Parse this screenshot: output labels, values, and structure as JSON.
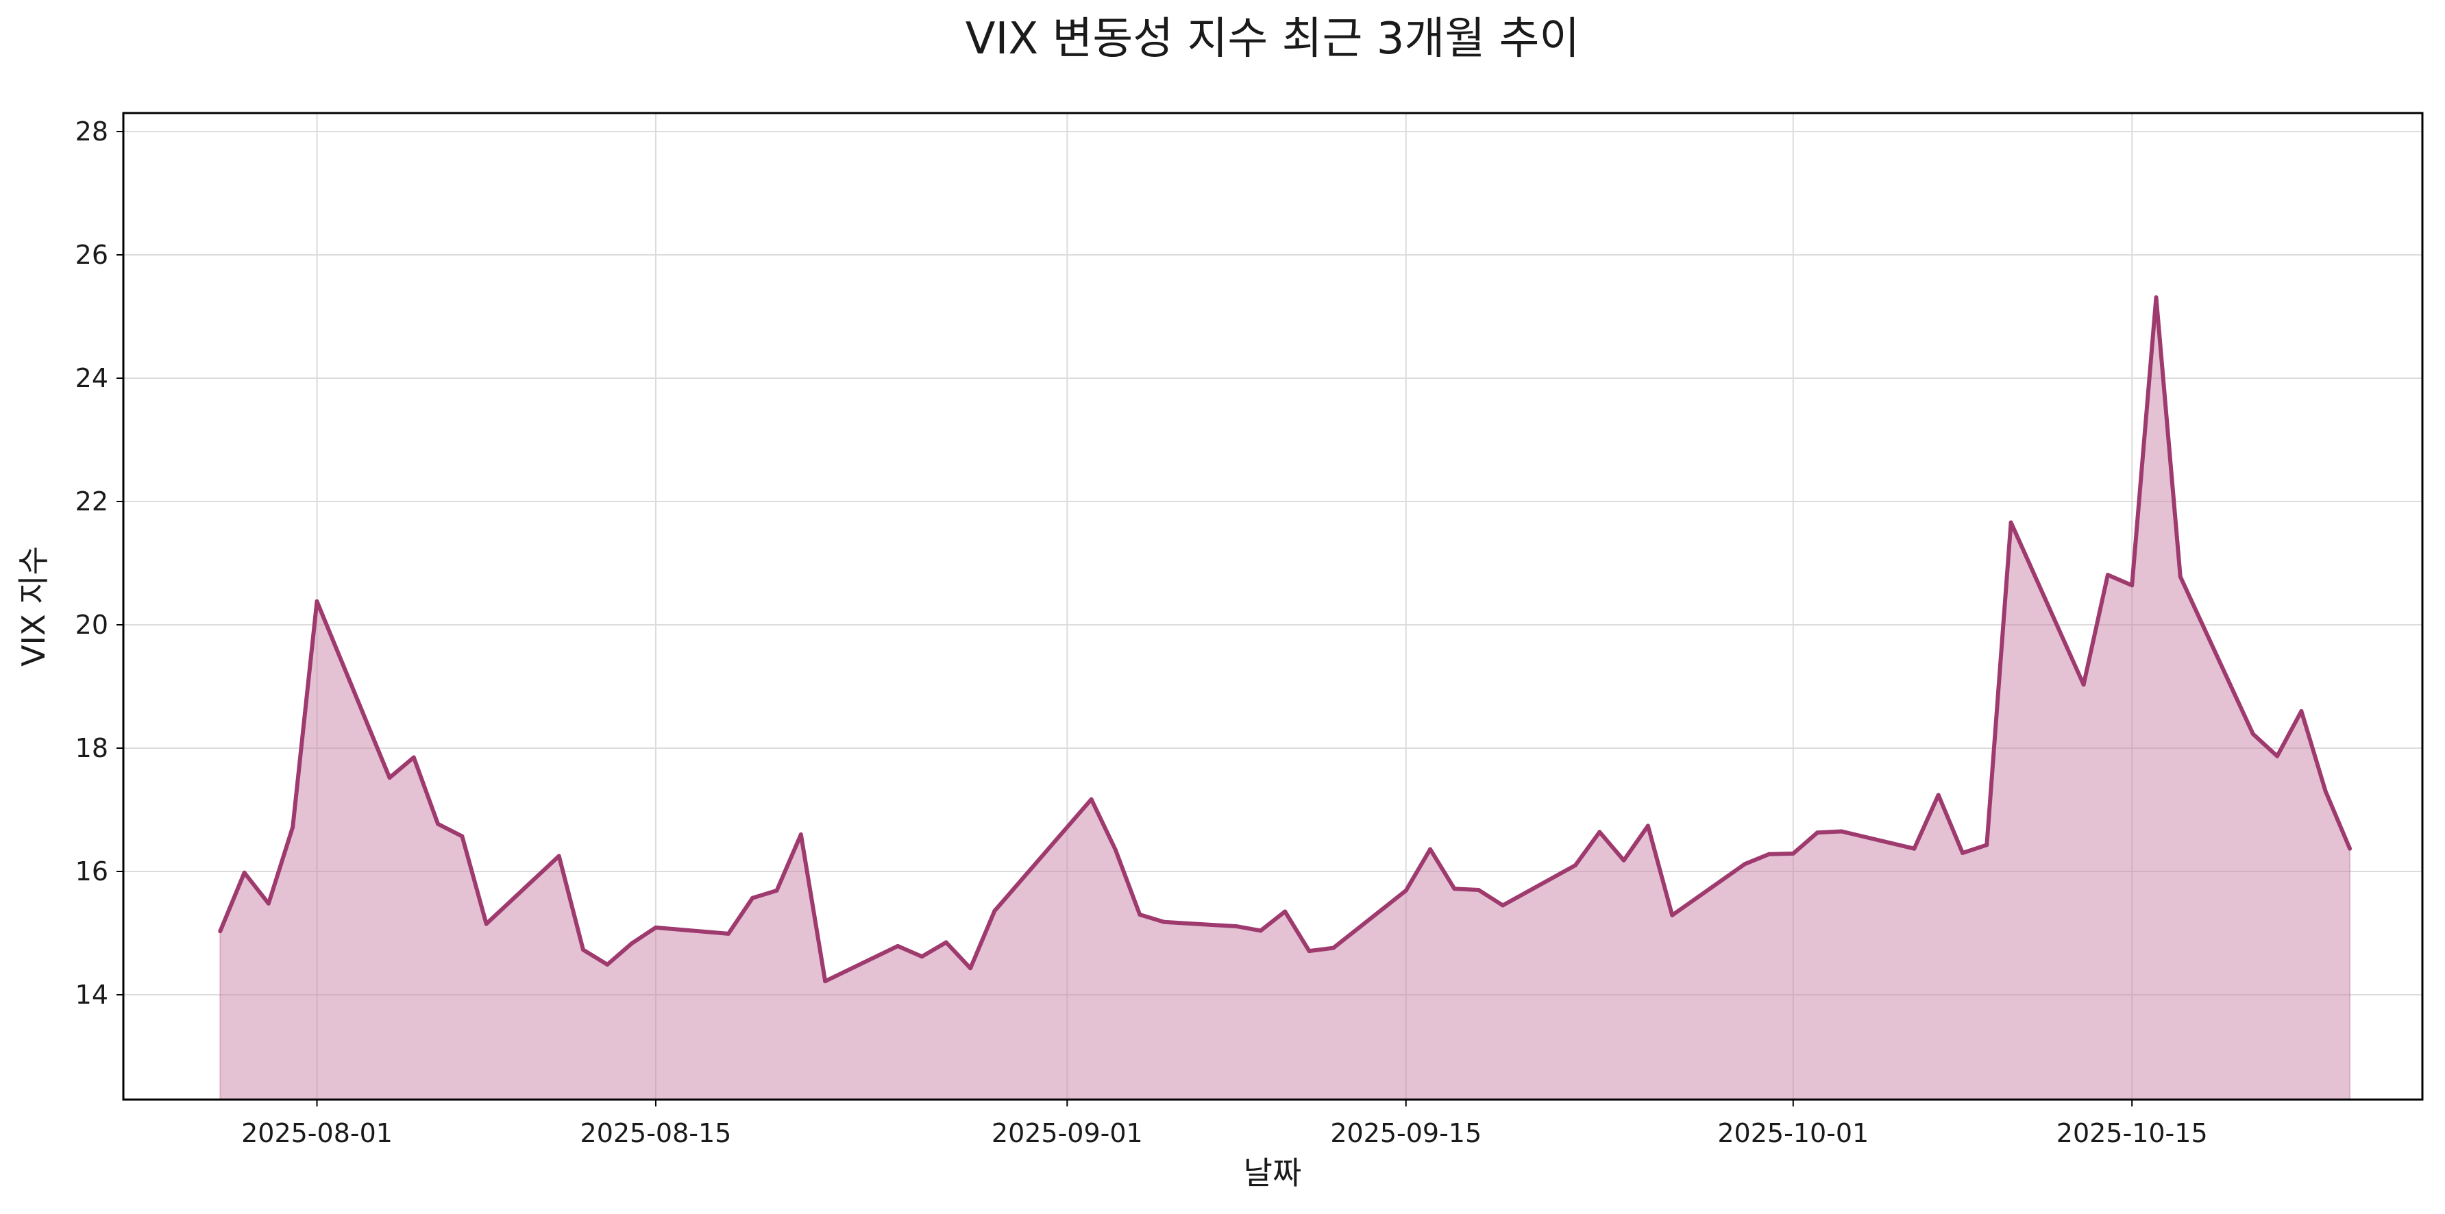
{
  "chart_data": {
    "type": "area",
    "title": "VIX 변동성 지수 최근 3개월 추이",
    "xlabel": "날짜",
    "ylabel": "VIX 지수",
    "x_ticks": [
      "2025-08-01",
      "2025-08-15",
      "2025-09-01",
      "2025-09-15",
      "2025-10-01",
      "2025-10-15"
    ],
    "y_ticks": [
      14,
      16,
      18,
      20,
      22,
      24,
      26,
      28
    ],
    "xlim": [
      "2025-07-24",
      "2025-10-27"
    ],
    "ylim": [
      12.3,
      28.3
    ],
    "grid": true,
    "colors": {
      "line": "#9e3a6e",
      "fill": "#c77fa5"
    },
    "series": [
      {
        "points": [
          [
            "2025-07-28",
            15.03
          ],
          [
            "2025-07-29",
            15.98
          ],
          [
            "2025-07-30",
            15.48
          ],
          [
            "2025-07-31",
            16.72
          ],
          [
            "2025-08-01",
            20.38
          ],
          [
            "2025-08-04",
            17.52
          ],
          [
            "2025-08-05",
            17.85
          ],
          [
            "2025-08-06",
            16.77
          ],
          [
            "2025-08-07",
            16.57
          ],
          [
            "2025-08-08",
            15.15
          ],
          [
            "2025-08-11",
            16.25
          ],
          [
            "2025-08-12",
            14.73
          ],
          [
            "2025-08-13",
            14.49
          ],
          [
            "2025-08-14",
            14.83
          ],
          [
            "2025-08-15",
            15.09
          ],
          [
            "2025-08-18",
            14.99
          ],
          [
            "2025-08-19",
            15.57
          ],
          [
            "2025-08-20",
            15.69
          ],
          [
            "2025-08-21",
            16.6
          ],
          [
            "2025-08-22",
            14.22
          ],
          [
            "2025-08-25",
            14.79
          ],
          [
            "2025-08-26",
            14.62
          ],
          [
            "2025-08-27",
            14.85
          ],
          [
            "2025-08-28",
            14.43
          ],
          [
            "2025-08-29",
            15.36
          ],
          [
            "2025-09-02",
            17.17
          ],
          [
            "2025-09-03",
            16.35
          ],
          [
            "2025-09-04",
            15.3
          ],
          [
            "2025-09-05",
            15.18
          ],
          [
            "2025-09-08",
            15.11
          ],
          [
            "2025-09-09",
            15.04
          ],
          [
            "2025-09-10",
            15.35
          ],
          [
            "2025-09-11",
            14.71
          ],
          [
            "2025-09-12",
            14.76
          ],
          [
            "2025-09-15",
            15.69
          ],
          [
            "2025-09-16",
            16.36
          ],
          [
            "2025-09-17",
            15.72
          ],
          [
            "2025-09-18",
            15.7
          ],
          [
            "2025-09-19",
            15.45
          ],
          [
            "2025-09-22",
            16.1
          ],
          [
            "2025-09-23",
            16.64
          ],
          [
            "2025-09-24",
            16.18
          ],
          [
            "2025-09-25",
            16.74
          ],
          [
            "2025-09-26",
            15.29
          ],
          [
            "2025-09-29",
            16.12
          ],
          [
            "2025-09-30",
            16.28
          ],
          [
            "2025-10-01",
            16.29
          ],
          [
            "2025-10-02",
            16.63
          ],
          [
            "2025-10-03",
            16.65
          ],
          [
            "2025-10-06",
            16.37
          ],
          [
            "2025-10-07",
            17.24
          ],
          [
            "2025-10-08",
            16.3
          ],
          [
            "2025-10-09",
            16.43
          ],
          [
            "2025-10-10",
            21.66
          ],
          [
            "2025-10-13",
            19.03
          ],
          [
            "2025-10-14",
            20.81
          ],
          [
            "2025-10-15",
            20.64
          ],
          [
            "2025-10-16",
            25.31
          ],
          [
            "2025-10-17",
            20.78
          ],
          [
            "2025-10-20",
            18.23
          ],
          [
            "2025-10-21",
            17.87
          ],
          [
            "2025-10-22",
            18.6
          ],
          [
            "2025-10-23",
            17.3
          ],
          [
            "2025-10-24",
            16.37
          ]
        ]
      }
    ]
  }
}
